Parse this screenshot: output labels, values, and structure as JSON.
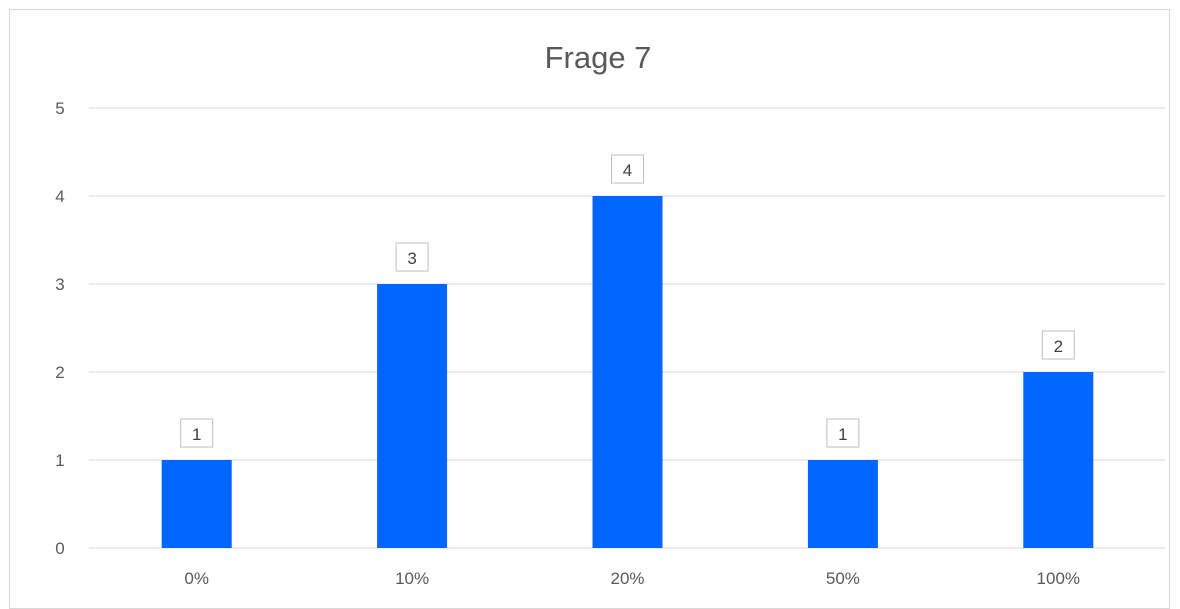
{
  "chart_data": {
    "type": "bar",
    "title": "Frage 7",
    "xlabel": "",
    "ylabel": "",
    "categories": [
      "0%",
      "10%",
      "20%",
      "50%",
      "100%"
    ],
    "values": [
      1,
      3,
      4,
      1,
      2
    ],
    "ylim": [
      0,
      5
    ],
    "yticks": [
      0,
      1,
      2,
      3,
      4,
      5
    ],
    "grid": true,
    "legend": "none",
    "data_labels": true,
    "colors": {
      "bar": "#0066ff",
      "grid": "#d9d9d9",
      "text": "#595959",
      "label_border": "#bfbfbf"
    }
  }
}
